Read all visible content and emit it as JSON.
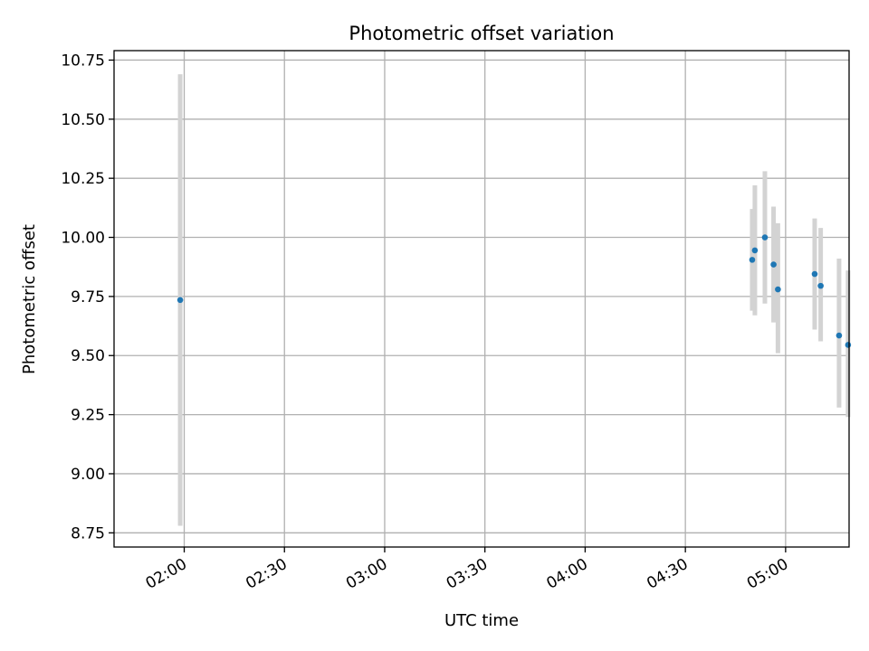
{
  "chart_data": {
    "type": "scatter",
    "title": "Photometric offset variation",
    "xlabel": "UTC time",
    "ylabel": "Photometric offset",
    "grid": true,
    "xlim_minutes": [
      99,
      319
    ],
    "ylim": [
      8.69,
      10.79
    ],
    "x_ticks": [
      {
        "minutes": 120,
        "label": "02:00"
      },
      {
        "minutes": 150,
        "label": "02:30"
      },
      {
        "minutes": 180,
        "label": "03:00"
      },
      {
        "minutes": 210,
        "label": "03:30"
      },
      {
        "minutes": 240,
        "label": "04:00"
      },
      {
        "minutes": 270,
        "label": "04:30"
      },
      {
        "minutes": 300,
        "label": "05:00"
      }
    ],
    "y_ticks": [
      {
        "value": 8.75,
        "label": "8.75"
      },
      {
        "value": 9.0,
        "label": "9.00"
      },
      {
        "value": 9.25,
        "label": "9.25"
      },
      {
        "value": 9.5,
        "label": "9.50"
      },
      {
        "value": 9.75,
        "label": "9.75"
      },
      {
        "value": 10.0,
        "label": "10.00"
      },
      {
        "value": 10.25,
        "label": "10.25"
      },
      {
        "value": 10.5,
        "label": "10.50"
      },
      {
        "value": 10.75,
        "label": "10.75"
      }
    ],
    "series": [
      {
        "name": "offset",
        "marker_color": "#1f77b4",
        "errorbar_color": "#d3d3d3",
        "points": [
          {
            "time": "01:59",
            "minutes": 118.8,
            "y": 9.735,
            "ylo": 8.78,
            "yhi": 10.69
          },
          {
            "time": "04:50",
            "minutes": 290.0,
            "y": 9.905,
            "ylo": 9.69,
            "yhi": 10.12
          },
          {
            "time": "04:51",
            "minutes": 290.8,
            "y": 9.945,
            "ylo": 9.67,
            "yhi": 10.22
          },
          {
            "time": "04:54",
            "minutes": 293.8,
            "y": 10.0,
            "ylo": 9.72,
            "yhi": 10.28
          },
          {
            "time": "04:56",
            "minutes": 296.4,
            "y": 9.885,
            "ylo": 9.64,
            "yhi": 10.13
          },
          {
            "time": "04:58",
            "minutes": 297.7,
            "y": 9.78,
            "ylo": 9.51,
            "yhi": 10.06
          },
          {
            "time": "05:08",
            "minutes": 308.7,
            "y": 9.845,
            "ylo": 9.61,
            "yhi": 10.08
          },
          {
            "time": "05:10",
            "minutes": 310.5,
            "y": 9.795,
            "ylo": 9.56,
            "yhi": 10.04
          },
          {
            "time": "05:16",
            "minutes": 316.0,
            "y": 9.585,
            "ylo": 9.28,
            "yhi": 9.91
          },
          {
            "time": "05:19",
            "minutes": 318.7,
            "y": 9.545,
            "ylo": 9.24,
            "yhi": 9.86
          }
        ]
      }
    ]
  }
}
